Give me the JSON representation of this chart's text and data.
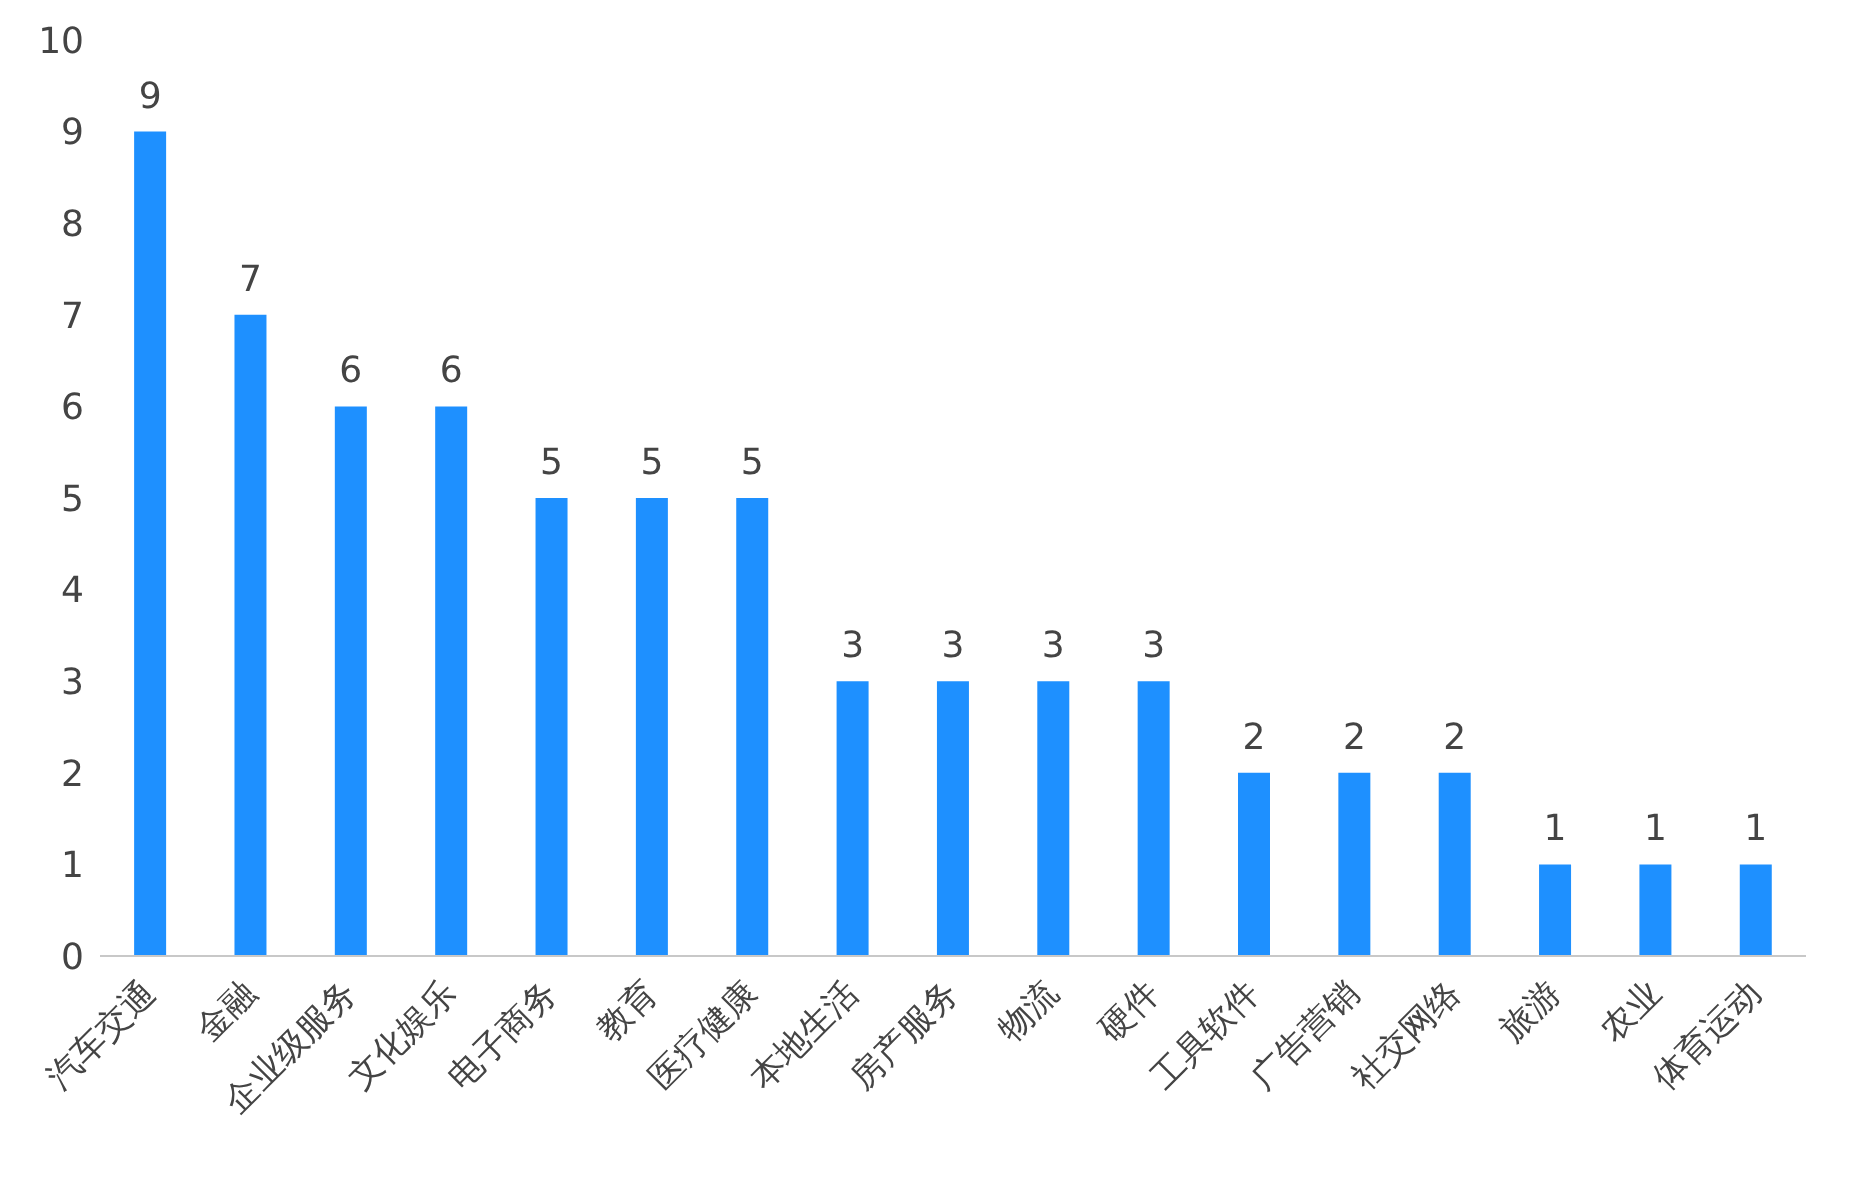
{
  "chart_data": {
    "type": "bar",
    "categories": [
      "汽车交通",
      "金融",
      "企业级服务",
      "文化娱乐",
      "电子商务",
      "教育",
      "医疗健康",
      "本地生活",
      "房产服务",
      "物流",
      "硬件",
      "工具软件",
      "广告营销",
      "社交网络",
      "旅游",
      "农业",
      "体育运动"
    ],
    "values": [
      9,
      7,
      6,
      6,
      5,
      5,
      5,
      3,
      3,
      3,
      3,
      2,
      2,
      2,
      1,
      1,
      1
    ],
    "color": "#1e90ff",
    "ylim": [
      0,
      10
    ],
    "yticks": [
      0,
      1,
      2,
      3,
      4,
      5,
      6,
      7,
      8,
      9,
      10
    ],
    "grid": false,
    "legend": false,
    "data_labels": true
  }
}
